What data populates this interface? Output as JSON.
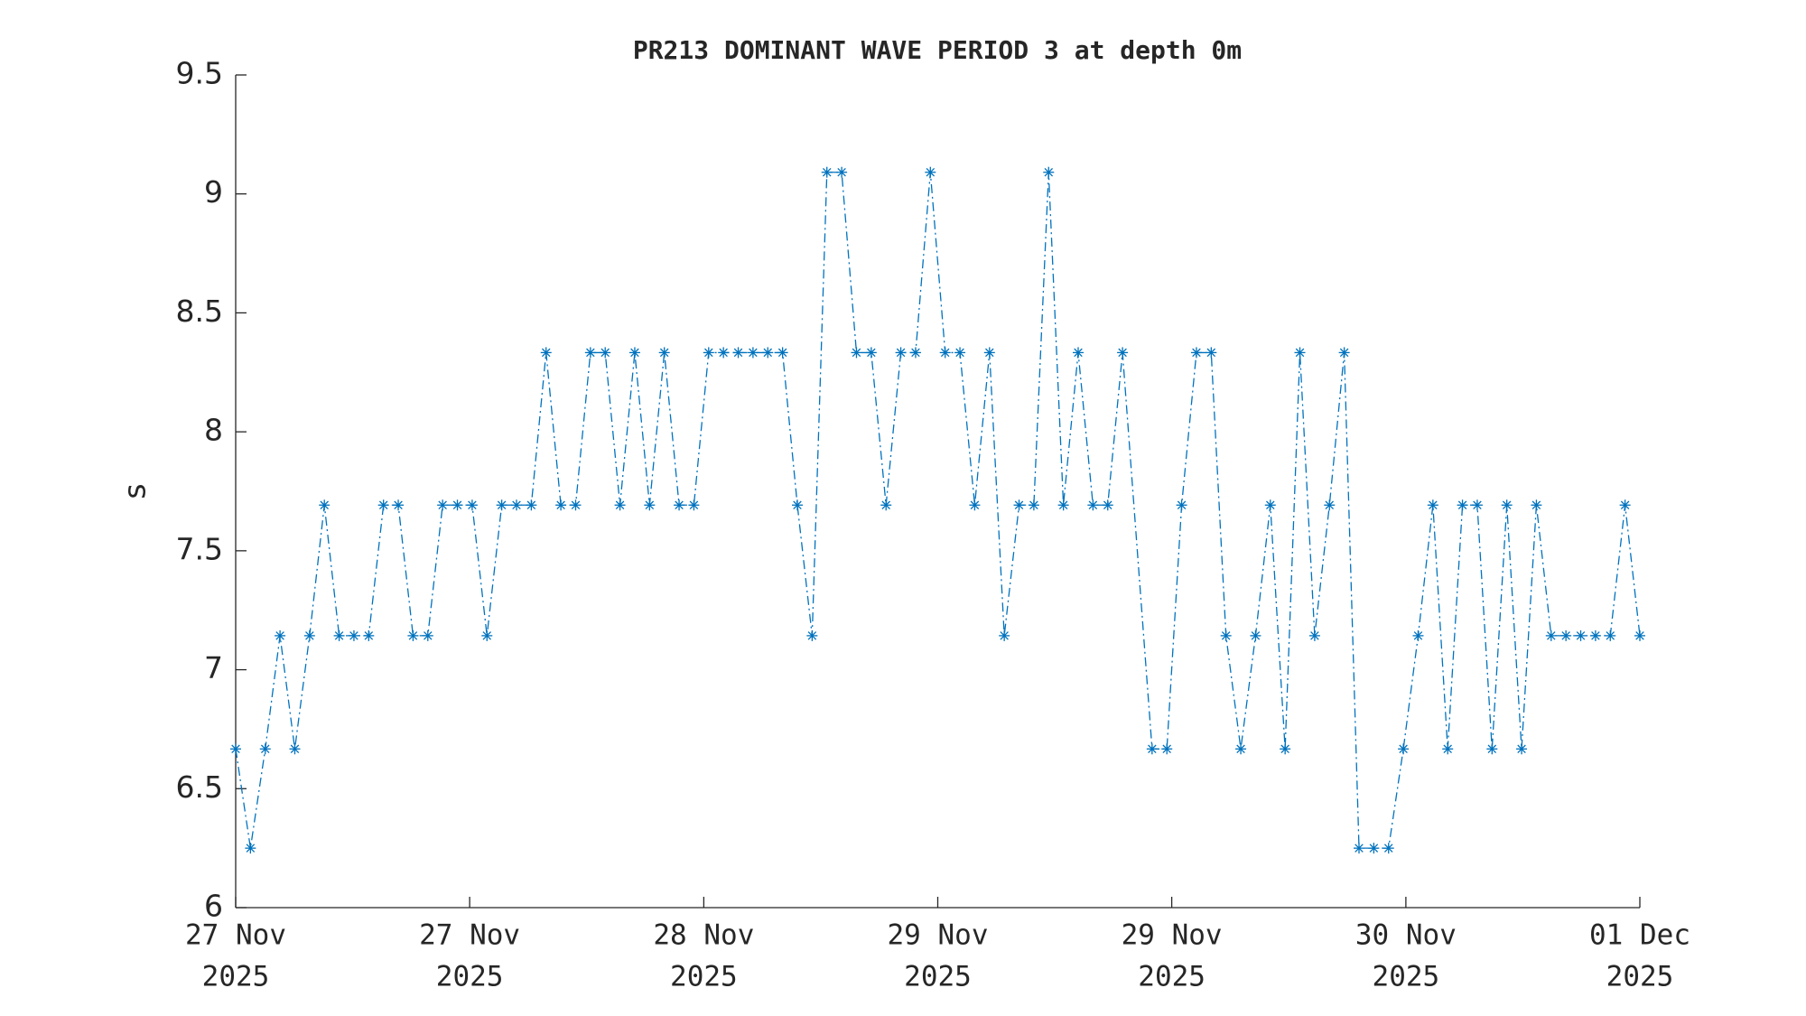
{
  "chart_data": {
    "type": "line",
    "title": "PR213 DOMINANT WAVE PERIOD 3 at depth 0m",
    "ylabel": "s",
    "x": [
      0,
      1,
      2,
      3,
      4,
      5,
      6,
      7,
      8,
      9,
      10,
      11,
      12,
      13,
      14,
      15,
      16,
      17,
      18,
      19,
      20,
      21,
      22,
      23,
      24,
      25,
      26,
      27,
      28,
      29,
      30,
      31,
      32,
      33,
      34,
      35,
      36,
      37,
      38,
      39,
      40,
      41,
      42,
      43,
      44,
      45,
      46,
      47,
      48,
      49,
      50,
      51,
      52,
      53,
      54,
      55,
      56,
      57,
      58,
      59,
      60,
      62,
      63,
      64,
      65,
      66,
      67,
      68,
      69,
      70,
      71,
      72,
      73,
      74,
      75,
      76,
      77,
      78,
      79,
      80,
      81,
      82,
      83,
      84,
      85,
      86,
      87,
      88,
      89,
      90,
      91,
      92,
      93,
      94,
      95
    ],
    "series": [
      {
        "name": "PR213",
        "color": "#0072bd",
        "values": [
          6.667,
          6.25,
          6.667,
          7.143,
          6.667,
          7.143,
          7.692,
          7.143,
          7.143,
          7.143,
          7.692,
          7.692,
          7.143,
          7.143,
          7.692,
          7.692,
          7.692,
          7.143,
          7.692,
          7.692,
          7.692,
          8.333,
          7.692,
          7.692,
          8.333,
          8.333,
          7.692,
          8.333,
          7.692,
          8.333,
          7.692,
          7.692,
          8.333,
          8.333,
          8.333,
          8.333,
          8.333,
          8.333,
          7.692,
          7.143,
          9.091,
          9.091,
          8.333,
          8.333,
          7.692,
          8.333,
          8.333,
          9.091,
          8.333,
          8.333,
          7.692,
          8.333,
          7.143,
          7.692,
          7.692,
          9.091,
          7.692,
          8.333,
          7.692,
          7.692,
          8.333,
          6.667,
          6.667,
          7.692,
          8.333,
          8.333,
          7.143,
          6.667,
          7.143,
          7.692,
          6.667,
          8.333,
          7.143,
          7.692,
          8.333,
          6.25,
          6.25,
          6.25,
          6.667,
          7.143,
          7.692,
          6.667,
          7.692,
          7.692,
          6.667,
          7.692,
          6.667,
          7.692,
          7.143,
          7.143,
          7.143,
          7.143,
          7.143,
          7.692,
          7.143
        ]
      }
    ],
    "xlim": [
      0,
      95
    ],
    "xticks": [
      {
        "value": 0,
        "label": [
          "27 Nov",
          "2025"
        ]
      },
      {
        "value": 15.83,
        "label": [
          "27 Nov",
          "2025"
        ]
      },
      {
        "value": 31.67,
        "label": [
          "28 Nov",
          "2025"
        ]
      },
      {
        "value": 47.5,
        "label": [
          "29 Nov",
          "2025"
        ]
      },
      {
        "value": 63.33,
        "label": [
          "29 Nov",
          "2025"
        ]
      },
      {
        "value": 79.17,
        "label": [
          "30 Nov",
          "2025"
        ]
      },
      {
        "value": 95,
        "label": [
          "01 Dec",
          "2025"
        ]
      }
    ],
    "ylim": [
      6,
      9.5
    ],
    "yticks": [
      6,
      6.5,
      7,
      7.5,
      8,
      8.5,
      9,
      9.5
    ],
    "grid": false,
    "line_style": "dash-dot",
    "marker": "asterisk"
  }
}
